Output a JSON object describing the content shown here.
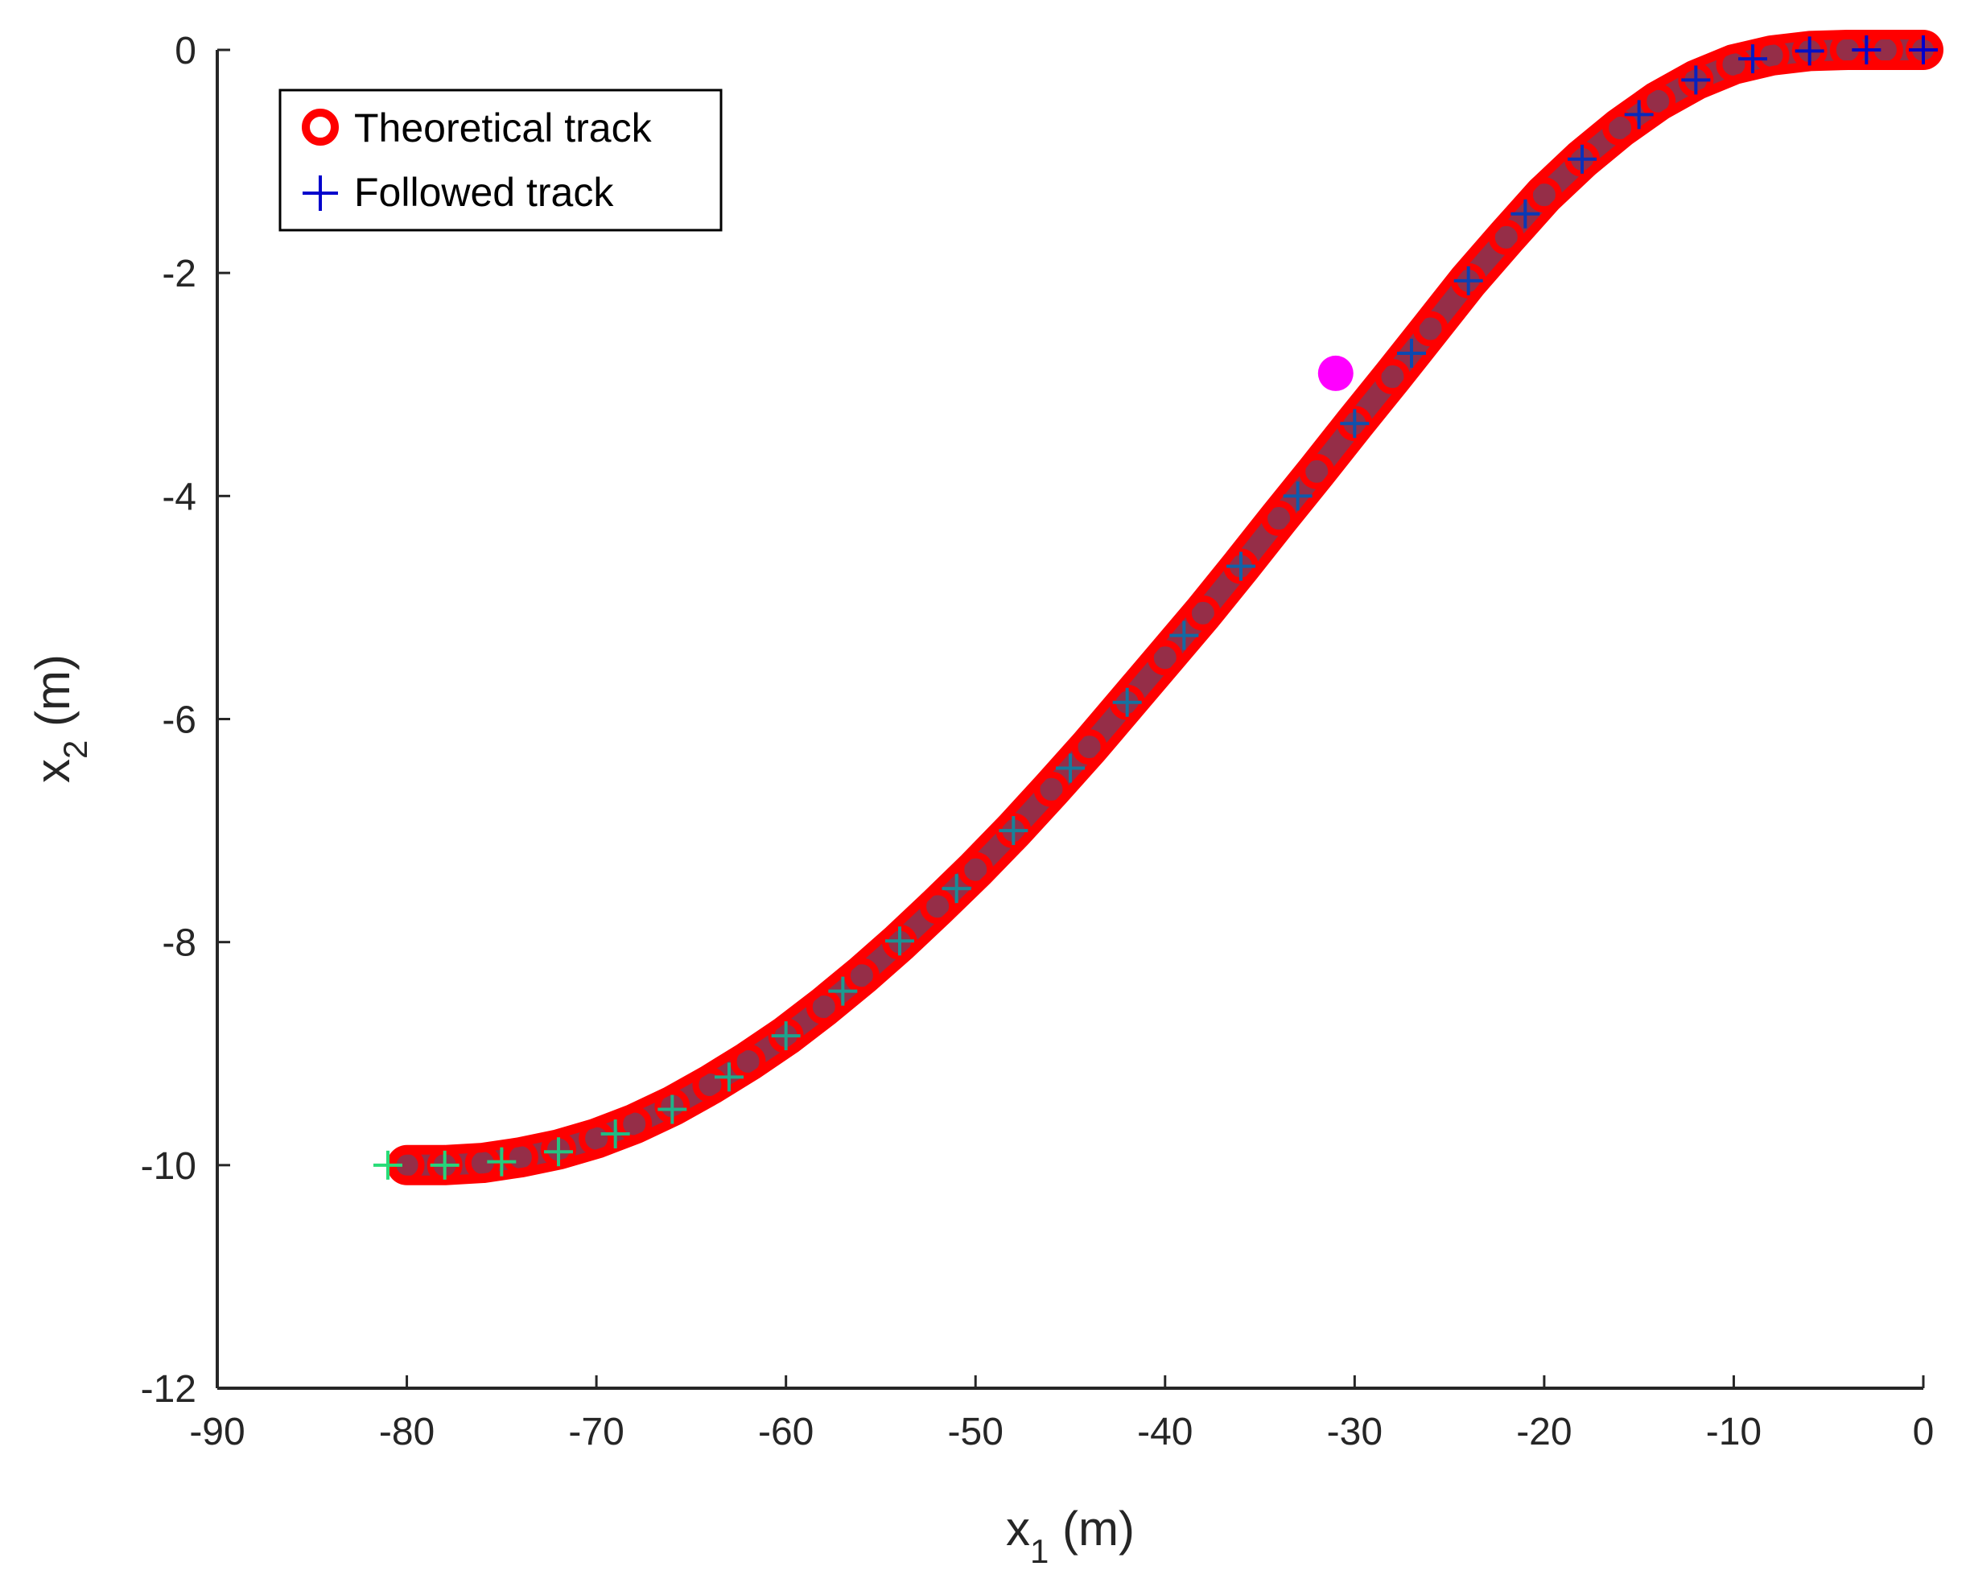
{
  "chart_data": {
    "type": "scatter",
    "xlabel": {
      "main": "x",
      "sub": "1",
      "unit": " (m)"
    },
    "ylabel": {
      "main": "x",
      "sub": "2",
      "unit": " (m)"
    },
    "xlim": [
      -90,
      0
    ],
    "ylim": [
      -12,
      0
    ],
    "xticks": [
      -90,
      -80,
      -70,
      -60,
      -50,
      -40,
      -30,
      -20,
      -10,
      0
    ],
    "yticks": [
      0,
      -2,
      -4,
      -6,
      -8,
      -10,
      -12
    ],
    "xtick_labels": [
      "-90",
      "-80",
      "-70",
      "-60",
      "-50",
      "-40",
      "-30",
      "-20",
      "-10",
      "0"
    ],
    "ytick_labels": [
      "0",
      "-2",
      "-4",
      "-6",
      "-8",
      "-10",
      "-12"
    ],
    "grid": false,
    "legend_position": "top-left",
    "series": [
      {
        "name": "Theoretical track",
        "marker": "circle",
        "color": "#ff0000",
        "x": [
          -80,
          -78,
          -76,
          -74,
          -72,
          -70,
          -68,
          -66,
          -64,
          -62,
          -60,
          -58,
          -56,
          -54,
          -52,
          -50,
          -48,
          -46,
          -44,
          -42,
          -40,
          -38,
          -36,
          -34,
          -32,
          -30,
          -28,
          -26,
          -24,
          -22,
          -20,
          -18,
          -16,
          -14,
          -12,
          -10,
          -8,
          -6,
          -4,
          -2,
          0
        ],
        "y": [
          -10.0,
          -10.0,
          -9.98,
          -9.93,
          -9.86,
          -9.76,
          -9.63,
          -9.47,
          -9.28,
          -9.07,
          -8.84,
          -8.58,
          -8.3,
          -8.0,
          -7.68,
          -7.35,
          -7.0,
          -6.63,
          -6.25,
          -5.85,
          -5.45,
          -5.05,
          -4.63,
          -4.2,
          -3.78,
          -3.35,
          -2.93,
          -2.5,
          -2.07,
          -1.68,
          -1.3,
          -0.98,
          -0.7,
          -0.46,
          -0.27,
          -0.13,
          -0.05,
          -0.01,
          0.0,
          0.0,
          0.0
        ]
      },
      {
        "name": "Followed track",
        "marker": "plus",
        "color": "#0000cc",
        "x": [
          -81,
          -78,
          -75,
          -72,
          -69,
          -66,
          -63,
          -60,
          -57,
          -54,
          -51,
          -48,
          -45,
          -42,
          -39,
          -36,
          -33,
          -30,
          -27,
          -24,
          -21,
          -18,
          -15,
          -12,
          -9,
          -6,
          -3,
          0
        ],
        "y": [
          -10.0,
          -10.0,
          -9.97,
          -9.88,
          -9.72,
          -9.5,
          -9.21,
          -8.84,
          -8.44,
          -7.99,
          -7.52,
          -7.0,
          -6.44,
          -5.85,
          -5.25,
          -4.63,
          -4.0,
          -3.35,
          -2.72,
          -2.07,
          -1.47,
          -0.98,
          -0.58,
          -0.27,
          -0.08,
          -0.01,
          0.0,
          0.0
        ]
      }
    ],
    "annotations": [
      {
        "marker": "filled-circle",
        "color": "#ff00ff",
        "x": -31,
        "y": -2.9
      }
    ]
  }
}
